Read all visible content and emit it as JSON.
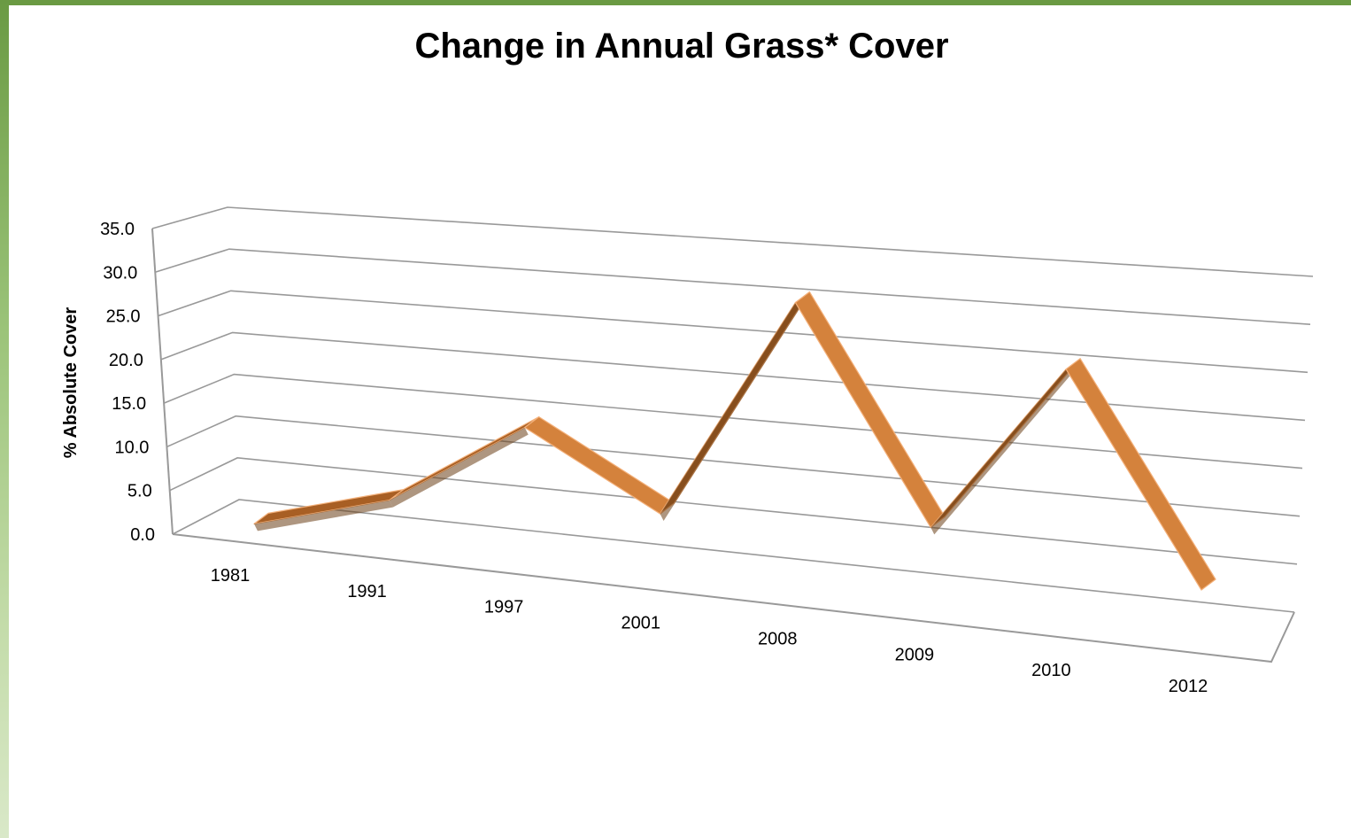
{
  "chart_data": {
    "type": "line",
    "title": "Change in Annual Grass* Cover",
    "ylabel": "% Absolute Cover",
    "xlabel": "",
    "categories": [
      "1981",
      "1991",
      "1997",
      "2001",
      "2008",
      "2009",
      "2010",
      "2012"
    ],
    "series": [
      {
        "values": [
          0.5,
          4.5,
          14.5,
          5.0,
          32.0,
          5.5,
          26.0,
          0.0
        ]
      }
    ],
    "ylim": [
      0,
      35
    ],
    "yticks": [
      "0.0",
      "5.0",
      "10.0",
      "15.0",
      "20.0",
      "25.0",
      "30.0",
      "35.0"
    ],
    "grid": true,
    "legend": "none",
    "style": "3d-line"
  },
  "colors": {
    "ribbon_top": "#d4823c",
    "ribbon_side": "#a85f24",
    "ribbon_dark": "#6b3f18",
    "ribbon_edge": "#f3b07a",
    "grid": "#999999",
    "accent_bar": "#6a9a43"
  }
}
